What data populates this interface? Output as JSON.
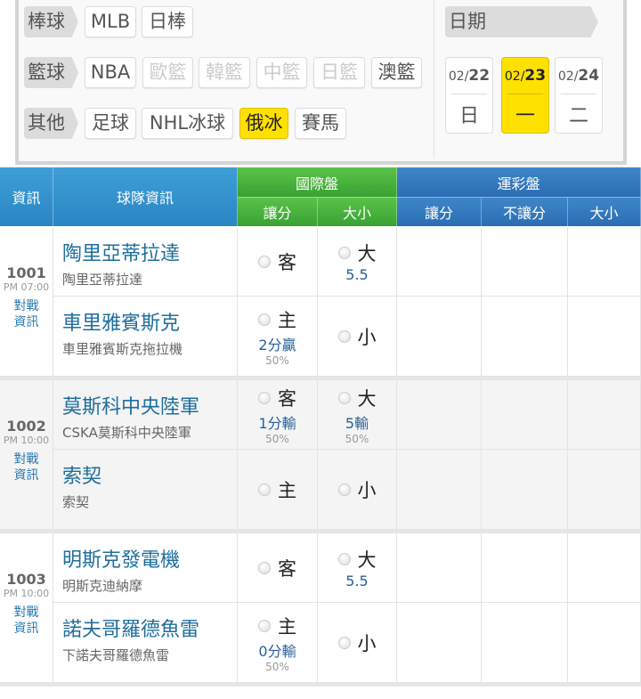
{
  "filters": [
    {
      "label": "棒球",
      "items": [
        {
          "label": "MLB",
          "state": "normal"
        },
        {
          "label": "日棒",
          "state": "normal"
        }
      ]
    },
    {
      "label": "籃球",
      "items": [
        {
          "label": "NBA",
          "state": "normal"
        },
        {
          "label": "歐籃",
          "state": "disabled"
        },
        {
          "label": "韓籃",
          "state": "disabled"
        },
        {
          "label": "中籃",
          "state": "disabled"
        },
        {
          "label": "日籃",
          "state": "disabled"
        },
        {
          "label": "澳籃",
          "state": "normal"
        }
      ]
    },
    {
      "label": "其他",
      "items": [
        {
          "label": "足球",
          "state": "normal"
        },
        {
          "label": "NHL冰球",
          "state": "normal"
        },
        {
          "label": "俄冰",
          "state": "selected"
        },
        {
          "label": "賽馬",
          "state": "normal"
        }
      ]
    }
  ],
  "date": {
    "label": "日期",
    "days": [
      {
        "month": "02/",
        "day": "22",
        "weekday": "日",
        "selected": false
      },
      {
        "month": "02/",
        "day": "23",
        "weekday": "一",
        "selected": true
      },
      {
        "month": "02/",
        "day": "24",
        "weekday": "二",
        "selected": false
      }
    ]
  },
  "table": {
    "headers": {
      "info": "資訊",
      "team": "球隊資訊",
      "intl": "國際盤",
      "intl_spread": "讓分",
      "intl_total": "大小",
      "lottery": "運彩盤",
      "lot_spread": "讓分",
      "lot_moneyline": "不讓分",
      "lot_total": "大小"
    },
    "games": [
      {
        "no": "1001",
        "time": "PM 07:00",
        "link1": "對戰",
        "link2": "資訊",
        "rows": [
          {
            "team": "陶里亞蒂拉達",
            "sub": "陶里亞蒂拉達",
            "spread": {
              "label": "客",
              "value": "",
              "pct": ""
            },
            "total": {
              "label": "大",
              "value": "5.5",
              "pct": ""
            }
          },
          {
            "team": "車里雅賓斯克",
            "sub": "車里雅賓斯克拖拉機",
            "spread": {
              "label": "主",
              "value": "2分贏",
              "pct": "50%"
            },
            "total": {
              "label": "小",
              "value": "",
              "pct": ""
            }
          }
        ]
      },
      {
        "no": "1002",
        "time": "PM 10:00",
        "link1": "對戰",
        "link2": "資訊",
        "rows": [
          {
            "team": "莫斯科中央陸軍",
            "sub": "CSKA莫斯科中央陸軍",
            "spread": {
              "label": "客",
              "value": "1分輸",
              "pct": "50%"
            },
            "total": {
              "label": "大",
              "value": "5輸",
              "pct": "50%"
            }
          },
          {
            "team": "索契",
            "sub": "索契",
            "spread": {
              "label": "主",
              "value": "",
              "pct": ""
            },
            "total": {
              "label": "小",
              "value": "",
              "pct": ""
            }
          }
        ]
      },
      {
        "no": "1003",
        "time": "PM 10:00",
        "link1": "對戰",
        "link2": "資訊",
        "rows": [
          {
            "team": "明斯克發電機",
            "sub": "明斯克迪納摩",
            "spread": {
              "label": "客",
              "value": "",
              "pct": ""
            },
            "total": {
              "label": "大",
              "value": "5.5",
              "pct": ""
            }
          },
          {
            "team": "諾夫哥羅德魚雷",
            "sub": "下諾夫哥羅德魚雷",
            "spread": {
              "label": "主",
              "value": "0分輸",
              "pct": "50%"
            },
            "total": {
              "label": "小",
              "value": "",
              "pct": ""
            }
          }
        ]
      }
    ]
  }
}
